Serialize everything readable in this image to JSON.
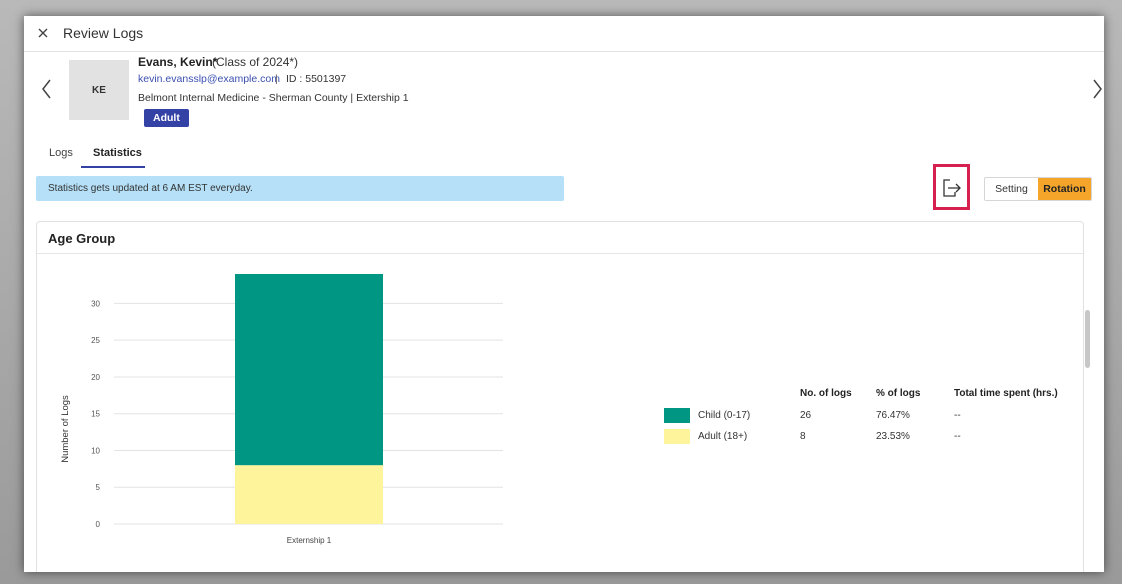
{
  "header": {
    "title": "Review Logs"
  },
  "student": {
    "initials": "KE",
    "name": "Evans, Kevin*",
    "class": "(Class of 2024*)",
    "email": "kevin.evansslp@example.com",
    "separator": "|",
    "id": "ID : 5501397",
    "site": "Belmont Internal Medicine - Sherman County | Extership 1",
    "badge": "Adult"
  },
  "tabs": [
    {
      "label": "Logs"
    },
    {
      "label": "Statistics"
    }
  ],
  "banner": {
    "text": "Statistics gets updated at 6 AM EST everyday."
  },
  "toggle": {
    "options": [
      "Setting",
      "Rotation"
    ],
    "selected": "Rotation"
  },
  "card": {
    "title": "Age Group"
  },
  "chart_data": {
    "type": "bar",
    "stacked": true,
    "categories": [
      "Externship 1"
    ],
    "series": [
      {
        "name": "Child (0-17)",
        "values": [
          26
        ],
        "color": "#009684"
      },
      {
        "name": "Adult (18+)",
        "values": [
          8
        ],
        "color": "#fdf49c"
      }
    ],
    "ylabel": "Number of Logs",
    "xlabel": "",
    "ylim": [
      0,
      34
    ],
    "yticks": [
      0,
      5,
      10,
      15,
      20,
      25,
      30
    ],
    "grid": true
  },
  "stats_table": {
    "headers": [
      "No. of logs",
      "% of logs",
      "Total time spent (hrs.)"
    ],
    "rows": [
      {
        "label": "Child (0-17)",
        "count": "26",
        "percent": "76.47%",
        "time": "--",
        "color": "#009684"
      },
      {
        "label": "Adult (18+)",
        "count": "8",
        "percent": "23.53%",
        "time": "--",
        "color": "#fdf49c"
      }
    ]
  },
  "colors": {
    "accent": "#3542a5",
    "toggle_active": "#f6a52b",
    "highlight": "#d6204f",
    "banner": "#b5e0f7"
  }
}
